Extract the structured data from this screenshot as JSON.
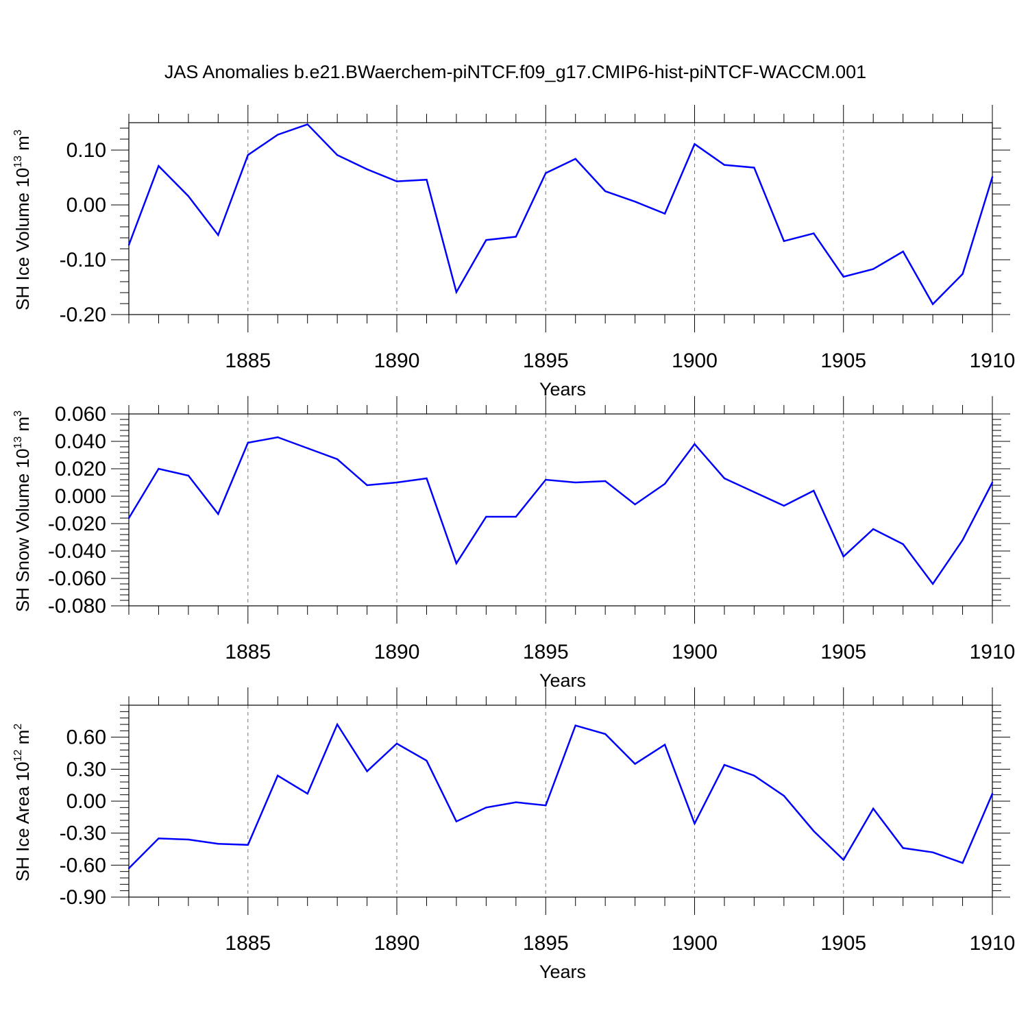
{
  "title": "JAS Anomalies b.e21.BWaerchem-piNTCF.f09_g17.CMIP6-hist-piNTCF-WACCM.001",
  "line_color": "#0000ff",
  "chart_data": [
    {
      "type": "line",
      "xlabel": "Years",
      "ylabel": {
        "text": "SH Ice Volume 10",
        "exp": "13",
        "unit": " m",
        "unit_exp": "3"
      },
      "xlim": [
        1881,
        1910
      ],
      "ylim": [
        -0.2,
        0.15
      ],
      "xticks": [
        1885,
        1890,
        1895,
        1900,
        1905,
        1910
      ],
      "yticks": [
        -0.2,
        -0.1,
        0.0,
        0.1
      ],
      "ytick_labels": [
        "-0.20",
        "-0.10",
        "0.00",
        "0.10"
      ],
      "grid": "vertical dashed at major x ticks",
      "x": [
        1881,
        1882,
        1883,
        1884,
        1885,
        1886,
        1887,
        1888,
        1889,
        1890,
        1891,
        1892,
        1893,
        1894,
        1895,
        1896,
        1897,
        1898,
        1899,
        1900,
        1901,
        1902,
        1903,
        1904,
        1905,
        1906,
        1907,
        1908,
        1909,
        1910
      ],
      "y": [
        -0.073,
        0.071,
        0.016,
        -0.055,
        0.091,
        0.128,
        0.147,
        0.091,
        0.065,
        0.043,
        0.046,
        -0.159,
        -0.064,
        -0.058,
        0.058,
        0.084,
        0.025,
        0.006,
        -0.016,
        0.111,
        0.073,
        0.068,
        -0.066,
        -0.052,
        -0.131,
        -0.117,
        -0.085,
        -0.181,
        -0.126,
        0.051
      ]
    },
    {
      "type": "line",
      "xlabel": "Years",
      "ylabel": {
        "text": "SH Snow Volume 10",
        "exp": "13",
        "unit": " m",
        "unit_exp": "3"
      },
      "xlim": [
        1881,
        1910
      ],
      "ylim": [
        -0.08,
        0.06
      ],
      "xticks": [
        1885,
        1890,
        1895,
        1900,
        1905,
        1910
      ],
      "yticks": [
        -0.08,
        -0.06,
        -0.04,
        -0.02,
        0.0,
        0.02,
        0.04,
        0.06
      ],
      "ytick_labels": [
        "-0.080",
        "-0.060",
        "-0.040",
        "-0.020",
        "0.000",
        "0.020",
        "0.040",
        "0.060"
      ],
      "grid": "vertical dashed at major x ticks",
      "x": [
        1881,
        1882,
        1883,
        1884,
        1885,
        1886,
        1887,
        1888,
        1889,
        1890,
        1891,
        1892,
        1893,
        1894,
        1895,
        1896,
        1897,
        1898,
        1899,
        1900,
        1901,
        1902,
        1903,
        1904,
        1905,
        1906,
        1907,
        1908,
        1909,
        1910
      ],
      "y": [
        -0.016,
        0.02,
        0.015,
        -0.013,
        0.039,
        0.043,
        0.035,
        0.027,
        0.008,
        0.01,
        0.013,
        -0.049,
        -0.015,
        -0.015,
        0.012,
        0.01,
        0.011,
        -0.006,
        0.009,
        0.038,
        0.013,
        0.003,
        -0.007,
        0.004,
        -0.044,
        -0.024,
        -0.035,
        -0.064,
        -0.032,
        0.01
      ]
    },
    {
      "type": "line",
      "xlabel": "Years",
      "ylabel": {
        "text": "SH Ice Area 10",
        "exp": "12",
        "unit": " m",
        "unit_exp": "2"
      },
      "xlim": [
        1881,
        1910
      ],
      "ylim": [
        -0.9,
        0.9
      ],
      "xticks": [
        1885,
        1890,
        1895,
        1900,
        1905,
        1910
      ],
      "yticks": [
        -0.9,
        -0.6,
        -0.3,
        0.0,
        0.3,
        0.6
      ],
      "ytick_labels": [
        "-0.90",
        "-0.60",
        "-0.30",
        "0.00",
        "0.30",
        "0.60"
      ],
      "grid": "vertical dashed at major x ticks",
      "x": [
        1881,
        1882,
        1883,
        1884,
        1885,
        1886,
        1887,
        1888,
        1889,
        1890,
        1891,
        1892,
        1893,
        1894,
        1895,
        1896,
        1897,
        1898,
        1899,
        1900,
        1901,
        1902,
        1903,
        1904,
        1905,
        1906,
        1907,
        1908,
        1909,
        1910
      ],
      "y": [
        -0.63,
        -0.35,
        -0.36,
        -0.4,
        -0.41,
        0.24,
        0.07,
        0.72,
        0.28,
        0.54,
        0.38,
        -0.19,
        -0.06,
        -0.01,
        -0.04,
        0.71,
        0.63,
        0.35,
        0.53,
        -0.21,
        0.34,
        0.24,
        0.05,
        -0.28,
        -0.55,
        -0.07,
        -0.44,
        -0.48,
        -0.58,
        0.07
      ]
    }
  ]
}
